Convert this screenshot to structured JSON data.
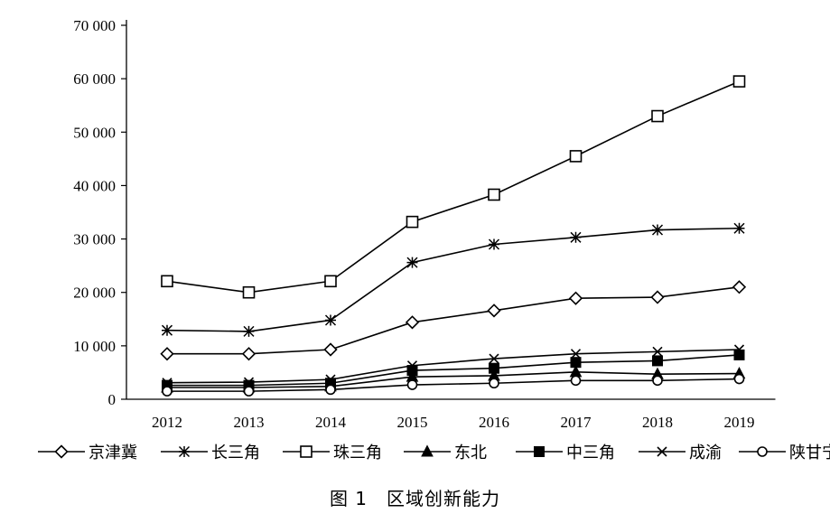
{
  "caption": "图 1　区域创新能力",
  "chart_data": {
    "type": "line",
    "title": "",
    "xlabel": "",
    "ylabel": "",
    "ylim": [
      0,
      70000
    ],
    "yticks": [
      0,
      10000,
      20000,
      30000,
      40000,
      50000,
      60000,
      70000
    ],
    "ytick_labels": [
      "0",
      "10 000",
      "20 000",
      "30 000",
      "40 000",
      "50 000",
      "60 000",
      "70 000"
    ],
    "categories": [
      "2012",
      "2013",
      "2014",
      "2015",
      "2016",
      "2017",
      "2018",
      "2019"
    ],
    "grid": false,
    "legend_position": "bottom",
    "series": [
      {
        "name": "京津冀",
        "marker": "diamond",
        "values": [
          8500,
          8500,
          9300,
          14400,
          16600,
          18900,
          19100,
          21000
        ]
      },
      {
        "name": "长三角",
        "marker": "asterisk",
        "values": [
          12900,
          12700,
          14800,
          25600,
          29000,
          30300,
          31700,
          32000
        ]
      },
      {
        "name": "珠三角",
        "marker": "square-open",
        "values": [
          22100,
          20000,
          22100,
          33200,
          38300,
          45500,
          53000,
          59500
        ]
      },
      {
        "name": "东北",
        "marker": "triangle-filled",
        "values": [
          2200,
          2200,
          2400,
          4200,
          4400,
          5100,
          4700,
          4800
        ]
      },
      {
        "name": "中三角",
        "marker": "square-filled",
        "values": [
          2600,
          2600,
          3000,
          5400,
          5800,
          6900,
          7200,
          8300
        ]
      },
      {
        "name": "成渝",
        "marker": "x",
        "values": [
          3100,
          3200,
          3700,
          6300,
          7600,
          8500,
          8900,
          9300
        ]
      },
      {
        "name": "陕甘宁",
        "marker": "circle-open",
        "values": [
          1500,
          1500,
          1800,
          2700,
          3000,
          3500,
          3500,
          3800
        ]
      }
    ]
  }
}
